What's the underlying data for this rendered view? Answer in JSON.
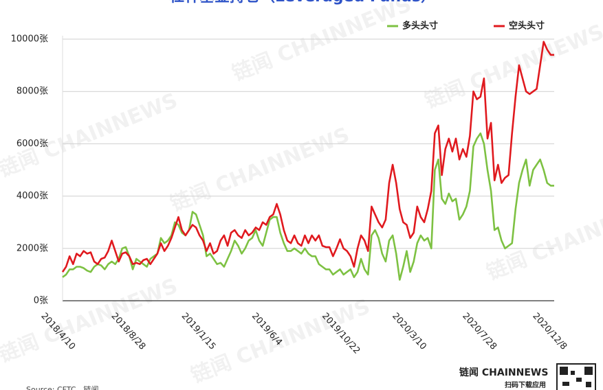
{
  "chart_data": {
    "type": "line",
    "title": "杠杆基金持仓（Leveraged Funds）",
    "source": "Source: CFTC，链闻",
    "watermark": "链闻 CHAINNEWS",
    "brand": "链闻 CHAINNEWS",
    "brand_sub": "扫码下载应用",
    "categories": [
      "2018/4/10",
      null,
      null,
      null,
      null,
      null,
      null,
      null,
      null,
      null,
      null,
      null,
      null,
      null,
      null,
      null,
      null,
      null,
      null,
      null,
      "2018/8/28",
      null,
      null,
      null,
      null,
      null,
      null,
      null,
      null,
      null,
      null,
      null,
      null,
      null,
      null,
      null,
      null,
      null,
      null,
      null,
      "2019/1/15",
      null,
      null,
      null,
      null,
      null,
      null,
      null,
      null,
      null,
      null,
      null,
      null,
      null,
      null,
      null,
      null,
      null,
      null,
      null,
      "2019/6/4",
      null,
      null,
      null,
      null,
      null,
      null,
      null,
      null,
      null,
      null,
      null,
      null,
      null,
      null,
      null,
      null,
      null,
      null,
      null,
      "2019/10/22",
      null,
      null,
      null,
      null,
      null,
      null,
      null,
      null,
      null,
      null,
      null,
      null,
      null,
      null,
      null,
      null,
      null,
      null,
      null,
      "2020/3/10",
      null,
      null,
      null,
      null,
      null,
      null,
      null,
      null,
      null,
      null,
      null,
      null,
      null,
      null,
      null,
      null,
      null,
      null,
      null,
      "2020/7/28",
      null,
      null,
      null,
      null,
      null,
      null,
      null,
      null,
      null,
      null,
      null,
      null,
      null,
      null,
      null,
      null,
      null,
      null,
      null,
      "2020/12/8"
    ],
    "series": [
      {
        "name": "多头头寸",
        "color": "#7dc142",
        "values": [
          900,
          1000,
          1200,
          1200,
          1300,
          1300,
          1250,
          1150,
          1100,
          1300,
          1400,
          1350,
          1200,
          1400,
          1500,
          1400,
          1600,
          2000,
          2050,
          1700,
          1200,
          1600,
          1500,
          1400,
          1300,
          1600,
          1700,
          1800,
          2400,
          2200,
          2300,
          2500,
          3000,
          2900,
          2600,
          2500,
          2700,
          3400,
          3300,
          2900,
          2500,
          1700,
          1800,
          1600,
          1400,
          1450,
          1300,
          1600,
          1900,
          2300,
          2100,
          1800,
          2000,
          2300,
          2400,
          2700,
          2300,
          2100,
          2600,
          3100,
          3200,
          3200,
          2600,
          2200,
          1900,
          1900,
          2000,
          1900,
          1800,
          2000,
          1800,
          1700,
          1700,
          1400,
          1300,
          1200,
          1200,
          1000,
          1100,
          1200,
          1000,
          1100,
          1200,
          900,
          1100,
          1600,
          1200,
          1000,
          2500,
          2700,
          2400,
          1800,
          1500,
          2300,
          2500,
          1800,
          800,
          1300,
          1900,
          1100,
          1500,
          2200,
          2500,
          2300,
          2400,
          2000,
          5000,
          5400,
          3900,
          3700,
          4100,
          3800,
          3900,
          3100,
          3300,
          3600,
          4200,
          5900,
          6200,
          6400,
          6000,
          5000,
          4200,
          2700,
          2800,
          2300,
          2000,
          2100,
          2200,
          3500,
          4500,
          5000,
          5400,
          4400,
          5000,
          5200,
          5400,
          5000,
          4500,
          4400,
          4400
        ]
      },
      {
        "name": "空头头寸",
        "color": "#e0191e",
        "values": [
          1100,
          1300,
          1700,
          1400,
          1800,
          1700,
          1900,
          1800,
          1850,
          1500,
          1400,
          1600,
          1650,
          1900,
          2300,
          1900,
          1500,
          1800,
          1850,
          1700,
          1400,
          1450,
          1400,
          1550,
          1600,
          1400,
          1600,
          1800,
          2200,
          1900,
          2100,
          2400,
          2800,
          3200,
          2700,
          2500,
          2700,
          2900,
          2800,
          2500,
          2300,
          1900,
          2200,
          1800,
          1900,
          2300,
          2500,
          2100,
          2600,
          2700,
          2500,
          2400,
          2700,
          2500,
          2600,
          2800,
          2700,
          3000,
          2900,
          3200,
          3300,
          3700,
          3300,
          2700,
          2300,
          2200,
          2500,
          2200,
          2100,
          2500,
          2200,
          2500,
          2300,
          2500,
          2100,
          2050,
          2050,
          1700,
          2000,
          2350,
          2000,
          1900,
          1700,
          1300,
          2000,
          2500,
          2300,
          1900,
          3600,
          3300,
          3000,
          2800,
          3100,
          4500,
          5200,
          4500,
          3500,
          3000,
          2900,
          2400,
          2600,
          3600,
          3200,
          3000,
          3500,
          4200,
          6400,
          6700,
          4800,
          5800,
          6200,
          5700,
          6200,
          5400,
          5800,
          5500,
          6300,
          8000,
          7700,
          7800,
          8500,
          6200,
          6800,
          4600,
          5200,
          4500,
          4700,
          4800,
          6400,
          7800,
          9000,
          8500,
          8000,
          7900,
          8000,
          8100,
          9000,
          9900,
          9600,
          9400,
          9400
        ]
      }
    ],
    "ylim": [
      0,
      10000
    ],
    "yticks": [
      {
        "value": 0,
        "label": "0张"
      },
      {
        "value": 2000,
        "label": "2000张"
      },
      {
        "value": 4000,
        "label": "4000张"
      },
      {
        "value": 6000,
        "label": "6000张"
      },
      {
        "value": 8000,
        "label": "8000张"
      },
      {
        "value": 10000,
        "label": "10000张"
      }
    ],
    "grid": true
  }
}
